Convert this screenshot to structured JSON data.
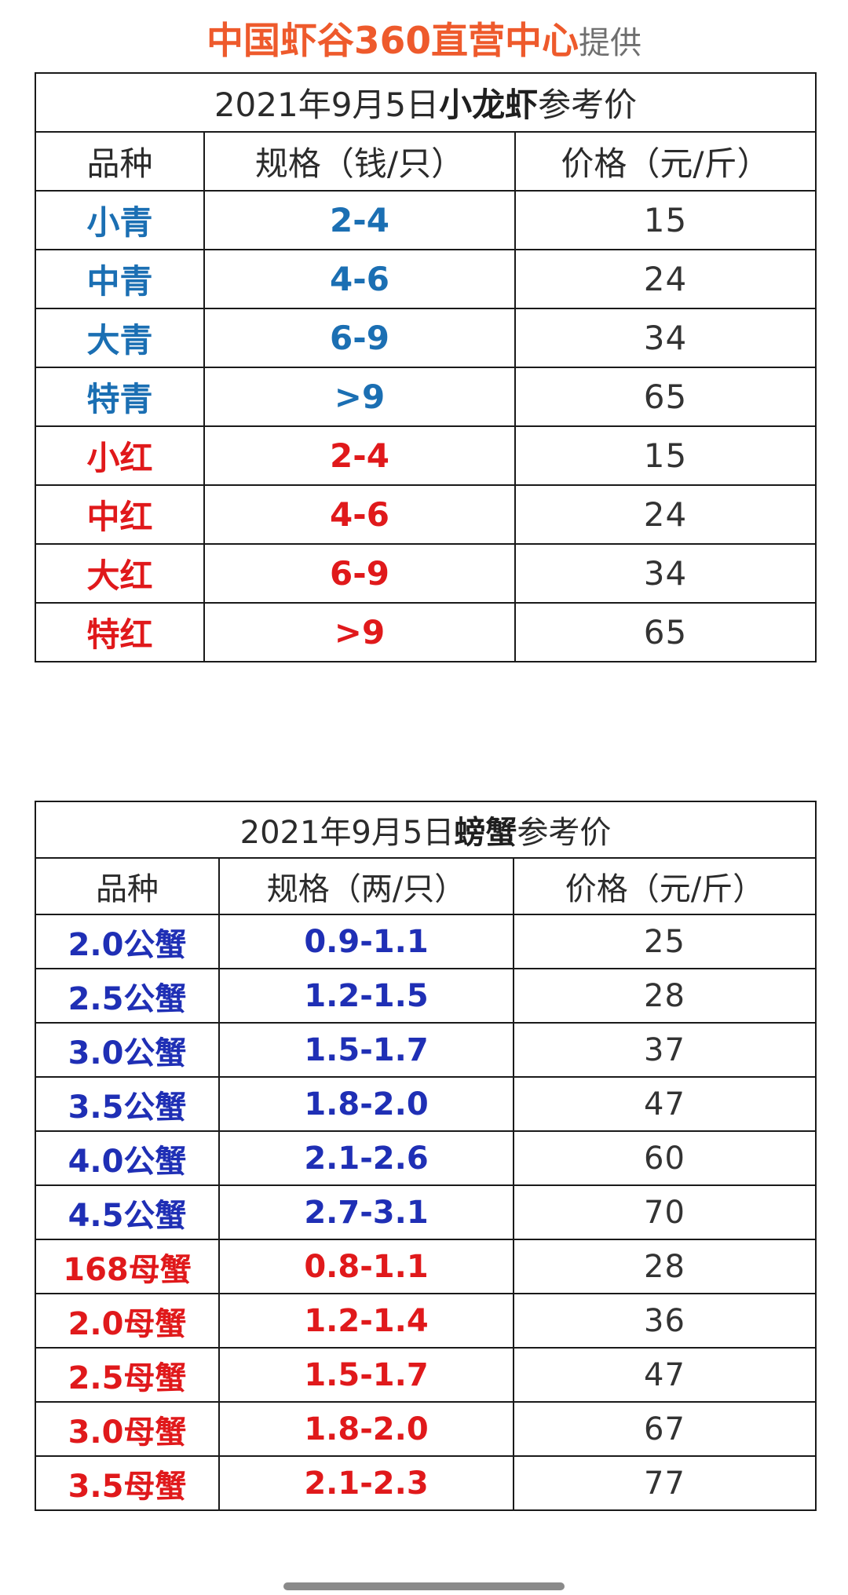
{
  "header": {
    "brand": "中国虾谷360直营中心",
    "suffix": "提供"
  },
  "colors": {
    "brand": "#ee5a2c",
    "crayfish_blue": "#1b6fb3",
    "crayfish_red": "#e0191b",
    "crab_blue": "#1f2fb5",
    "crab_red": "#e0191b"
  },
  "crayfish": {
    "title_prefix": "2021年9月5日",
    "title_strong": "小龙虾",
    "title_suffix": "参考价",
    "headers": [
      "品种",
      "规格（钱/只）",
      "价格（元/斤）"
    ],
    "rows": [
      {
        "name": "小青",
        "spec": "2-4",
        "price": "15",
        "color": "#1b6fb3"
      },
      {
        "name": "中青",
        "spec": "4-6",
        "price": "24",
        "color": "#1b6fb3"
      },
      {
        "name": "大青",
        "spec": "6-9",
        "price": "34",
        "color": "#1b6fb3"
      },
      {
        "name": "特青",
        "spec": ">9",
        "price": "65",
        "color": "#1b6fb3"
      },
      {
        "name": "小红",
        "spec": "2-4",
        "price": "15",
        "color": "#e0191b"
      },
      {
        "name": "中红",
        "spec": "4-6",
        "price": "24",
        "color": "#e0191b"
      },
      {
        "name": "大红",
        "spec": "6-9",
        "price": "34",
        "color": "#e0191b"
      },
      {
        "name": "特红",
        "spec": ">9",
        "price": "65",
        "color": "#e0191b"
      }
    ]
  },
  "crab": {
    "title_prefix": "2021年9月5日",
    "title_strong": "螃蟹",
    "title_suffix": "参考价",
    "headers": [
      "品种",
      "规格（两/只）",
      "价格（元/斤）"
    ],
    "rows": [
      {
        "name": "2.0公蟹",
        "spec": "0.9-1.1",
        "price": "25",
        "color": "#1f2fb5"
      },
      {
        "name": "2.5公蟹",
        "spec": "1.2-1.5",
        "price": "28",
        "color": "#1f2fb5"
      },
      {
        "name": "3.0公蟹",
        "spec": "1.5-1.7",
        "price": "37",
        "color": "#1f2fb5"
      },
      {
        "name": "3.5公蟹",
        "spec": "1.8-2.0",
        "price": "47",
        "color": "#1f2fb5"
      },
      {
        "name": "4.0公蟹",
        "spec": "2.1-2.6",
        "price": "60",
        "color": "#1f2fb5"
      },
      {
        "name": "4.5公蟹",
        "spec": "2.7-3.1",
        "price": "70",
        "color": "#1f2fb5"
      },
      {
        "name": "168母蟹",
        "spec": "0.8-1.1",
        "price": "28",
        "color": "#e0191b"
      },
      {
        "name": "2.0母蟹",
        "spec": "1.2-1.4",
        "price": "36",
        "color": "#e0191b"
      },
      {
        "name": "2.5母蟹",
        "spec": "1.5-1.7",
        "price": "47",
        "color": "#e0191b"
      },
      {
        "name": "3.0母蟹",
        "spec": "1.8-2.0",
        "price": "67",
        "color": "#e0191b"
      },
      {
        "name": "3.5母蟹",
        "spec": "2.1-2.3",
        "price": "77",
        "color": "#e0191b"
      }
    ]
  }
}
